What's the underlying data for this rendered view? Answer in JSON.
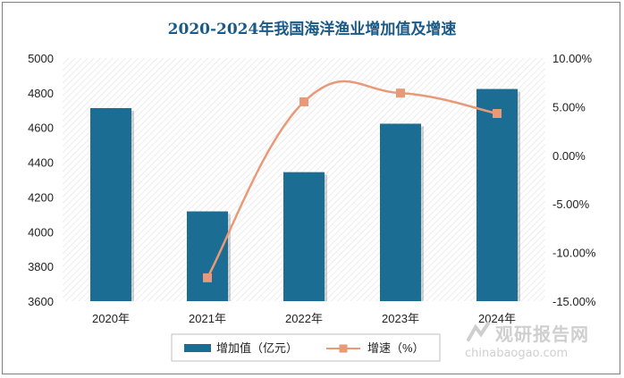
{
  "chart_data": {
    "type": "bar",
    "title": "2020-2024年我国海洋渔业增加值及增速",
    "categories": [
      "2020年",
      "2021年",
      "2022年",
      "2023年",
      "2024年"
    ],
    "series": [
      {
        "name": "增加值（亿元）",
        "type": "bar",
        "axis": "left",
        "color": "#1b6d93",
        "values": [
          4712,
          4117,
          4343,
          4622,
          4822
        ]
      },
      {
        "name": "增速（%）",
        "type": "line",
        "axis": "right",
        "color": "#e89a78",
        "values": [
          null,
          -12.6,
          5.5,
          6.4,
          4.3
        ]
      }
    ],
    "y_left": {
      "min": 3600,
      "max": 5000,
      "ticks": [
        3600,
        3800,
        4000,
        4200,
        4400,
        4600,
        4800,
        5000
      ]
    },
    "y_right": {
      "min": -15,
      "max": 10,
      "ticks": [
        "-15.00%",
        "-10.00%",
        "-5.00%",
        "0.00%",
        "5.00%",
        "10.00%"
      ]
    },
    "legend_position": "bottom",
    "plot_background": "diagonal hatch"
  },
  "watermark": {
    "text": "观研报告网",
    "url": "chinabaogao.com"
  }
}
